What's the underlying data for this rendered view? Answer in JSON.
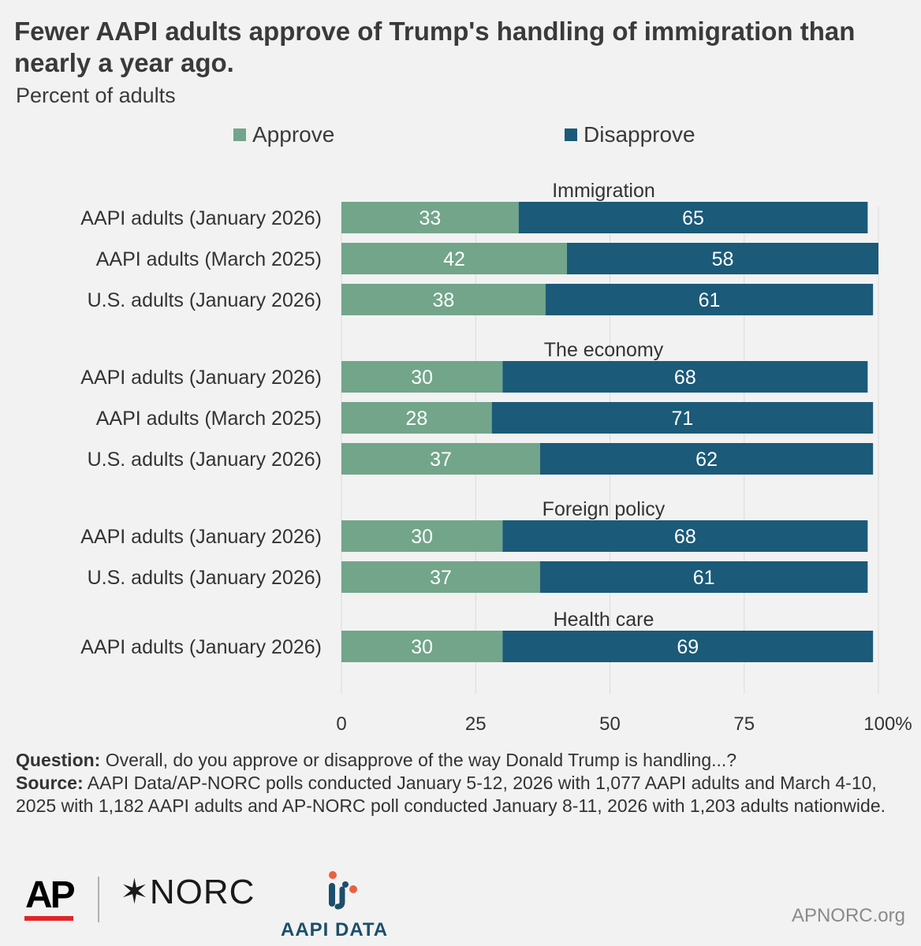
{
  "colors": {
    "approve": "#72a58a",
    "disapprove": "#1b5a79",
    "grid": "#d9d9d9",
    "background": "#f2f2f2"
  },
  "footer": {
    "question_label": "Question:",
    "question_text": "Overall, do you approve or disapprove of the way Donald Trump is handling...?",
    "source_label": "Source:",
    "source_text": "AAPI Data/AP-NORC polls conducted January 5-12, 2026 with 1,077 AAPI adults and March 4-10, 2025 with 1,182 AAPI adults and AP-NORC poll conducted January 8-11, 2026 with 1,203 adults nationwide."
  },
  "logos": {
    "ap": "AP",
    "norc": "NORC",
    "aapi_data": "AAPI DATA",
    "website": "APNORC.org"
  },
  "chart_data": {
    "type": "bar",
    "orientation": "horizontal",
    "stacked": true,
    "title": "Fewer AAPI adults approve of Trump's handling of immigration than nearly a year ago.",
    "subtitle": "Percent of adults",
    "legend": [
      "Approve",
      "Disapprove"
    ],
    "x_ticks": [
      "0",
      "25",
      "50",
      "75",
      "100%"
    ],
    "xlim": [
      0,
      100
    ],
    "groups": [
      {
        "name": "Immigration",
        "rows": [
          {
            "label": "AAPI adults (January 2026)",
            "approve": 33,
            "disapprove": 65
          },
          {
            "label": "AAPI adults (March 2025)",
            "approve": 42,
            "disapprove": 58
          },
          {
            "label": "U.S. adults (January 2026)",
            "approve": 38,
            "disapprove": 61
          }
        ]
      },
      {
        "name": "The economy",
        "rows": [
          {
            "label": "AAPI adults (January 2026)",
            "approve": 30,
            "disapprove": 68
          },
          {
            "label": "AAPI adults (March 2025)",
            "approve": 28,
            "disapprove": 71
          },
          {
            "label": "U.S. adults (January 2026)",
            "approve": 37,
            "disapprove": 62
          }
        ]
      },
      {
        "name": "Foreign policy",
        "rows": [
          {
            "label": "AAPI adults (January 2026)",
            "approve": 30,
            "disapprove": 68
          },
          {
            "label": "U.S. adults (January 2026)",
            "approve": 37,
            "disapprove": 61
          }
        ]
      },
      {
        "name": "Health care",
        "rows": [
          {
            "label": "AAPI adults (January 2026)",
            "approve": 30,
            "disapprove": 69
          }
        ]
      }
    ]
  }
}
